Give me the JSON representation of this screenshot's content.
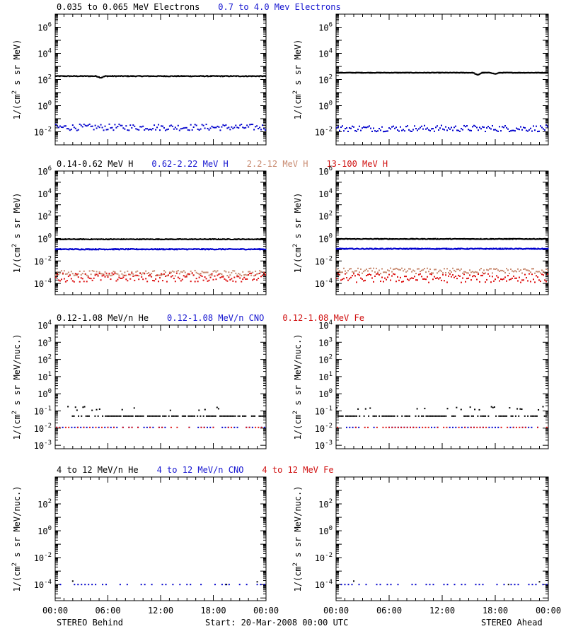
{
  "chart_data": {
    "type": "scatter",
    "x_ticks": [
      "00:00",
      "06:00",
      "12:00",
      "18:00",
      "00:00"
    ],
    "x_range_hours": [
      0,
      24
    ],
    "footer": {
      "left": "STEREO Behind",
      "center": "Start: 20-Mar-2008 00:00 UTC",
      "right": "STEREO Ahead"
    },
    "panels": [
      {
        "ylabel_parts": [
          "1/(cm",
          "2",
          " s sr MeV)"
        ],
        "ylog": [
          -3,
          7
        ],
        "yticks": [
          -2,
          0,
          2,
          4,
          6
        ],
        "legend": [
          {
            "text": "0.035 to 0.065 MeV Electrons",
            "color": "#000000"
          },
          {
            "text": "0.7 to 4.0 Mev Electrons",
            "color": "#1515d0"
          }
        ],
        "series": {
          "behind": [
            {
              "color": "#000000",
              "level": 180,
              "spread": 0.03,
              "kind": "line",
              "dip": [
                [
                  5.2,
                  0.12
                ]
              ]
            },
            {
              "color": "#0000cc",
              "level": 0.022,
              "spread": 0.12,
              "kind": "scatter"
            }
          ],
          "ahead": [
            {
              "color": "#000000",
              "level": 330,
              "spread": 0.02,
              "kind": "line",
              "dip": [
                [
                  16.0,
                  0.18
                ],
                [
                  18.0,
                  0.1
                ]
              ]
            },
            {
              "color": "#0000cc",
              "level": 0.018,
              "spread": 0.12,
              "kind": "scatter"
            }
          ]
        }
      },
      {
        "ylabel_parts": [
          "1/(cm",
          "2",
          " s sr MeV)"
        ],
        "ylog": [
          -5,
          6
        ],
        "yticks": [
          -4,
          -2,
          0,
          2,
          4,
          6
        ],
        "legend": [
          {
            "text": "0.14-0.62 MeV H",
            "color": "#000000"
          },
          {
            "text": "0.62-2.22 MeV H",
            "color": "#1515d0"
          },
          {
            "text": "2.2-12 MeV H",
            "color": "#c88a70"
          },
          {
            "text": "13-100 MeV H",
            "color": "#d01010"
          }
        ],
        "series": {
          "behind": [
            {
              "color": "#000000",
              "level": 0.85,
              "spread": 0.03,
              "kind": "line"
            },
            {
              "color": "#0000cc",
              "level": 0.11,
              "spread": 0.04,
              "kind": "line"
            },
            {
              "color": "#c88a70",
              "level": 0.0008,
              "spread": 0.12,
              "kind": "scatter"
            },
            {
              "color": "#dd1111",
              "level": 0.00035,
              "spread": 0.2,
              "kind": "scatter"
            }
          ],
          "ahead": [
            {
              "color": "#000000",
              "level": 0.9,
              "spread": 0.03,
              "kind": "line"
            },
            {
              "color": "#0000cc",
              "level": 0.12,
              "spread": 0.04,
              "kind": "line"
            },
            {
              "color": "#c88a70",
              "level": 0.0013,
              "spread": 0.12,
              "kind": "scatter"
            },
            {
              "color": "#dd1111",
              "level": 0.0003,
              "spread": 0.2,
              "kind": "scatter"
            }
          ]
        }
      },
      {
        "ylabel_parts": [
          "1/(cm",
          "2",
          " s sr MeV/nuc.)"
        ],
        "ylog": [
          -3.2,
          4
        ],
        "yticks": [
          -3,
          -2,
          -1,
          0,
          1,
          2,
          3,
          4
        ],
        "legend": [
          {
            "text": "0.12-1.08 MeV/n He",
            "color": "#000000"
          },
          {
            "text": "0.12-1.08 MeV/n CNO",
            "color": "#1515d0"
          },
          {
            "text": "0.12-1.08 MeV Fe",
            "color": "#d01010"
          }
        ],
        "series": {
          "behind": [
            {
              "color": "#000000",
              "level": 0.05,
              "spread": 0.0,
              "kind": "sparse",
              "extra": 0.12
            },
            {
              "color": "#0000cc",
              "level": 0.011,
              "spread": 0.0,
              "kind": "sparse2"
            },
            {
              "color": "#dd1111",
              "level": 0.011,
              "spread": 0.0,
              "kind": "sparse3"
            }
          ],
          "ahead": [
            {
              "color": "#000000",
              "level": 0.05,
              "spread": 0.0,
              "kind": "sparse",
              "extra": 0.12
            },
            {
              "color": "#0000cc",
              "level": 0.011,
              "spread": 0.0,
              "kind": "sparse2"
            },
            {
              "color": "#dd1111",
              "level": 0.011,
              "spread": 0.0,
              "kind": "sparse3"
            }
          ]
        }
      },
      {
        "ylabel_parts": [
          "1/(cm",
          "2",
          " s sr MeV/nuc.)"
        ],
        "ylog": [
          -5.2,
          4
        ],
        "yticks": [
          -4,
          -2,
          0,
          2
        ],
        "legend": [
          {
            "text": "4 to 12 MeV/n He",
            "color": "#000000"
          },
          {
            "text": "4 to 12 MeV/n CNO",
            "color": "#1515d0"
          },
          {
            "text": "4 to 12 MeV Fe",
            "color": "#d01010"
          }
        ],
        "series": {
          "behind": [
            {
              "color": "#0000cc",
              "level": 0.0001,
              "spread": 0.0,
              "kind": "sparse4"
            },
            {
              "color": "#000000",
              "level": 0.0001,
              "spread": 0.0,
              "kind": "few"
            }
          ],
          "ahead": [
            {
              "color": "#0000cc",
              "level": 0.0001,
              "spread": 0.0,
              "kind": "sparse4"
            },
            {
              "color": "#000000",
              "level": 0.0001,
              "spread": 0.0,
              "kind": "few"
            }
          ]
        }
      }
    ]
  }
}
